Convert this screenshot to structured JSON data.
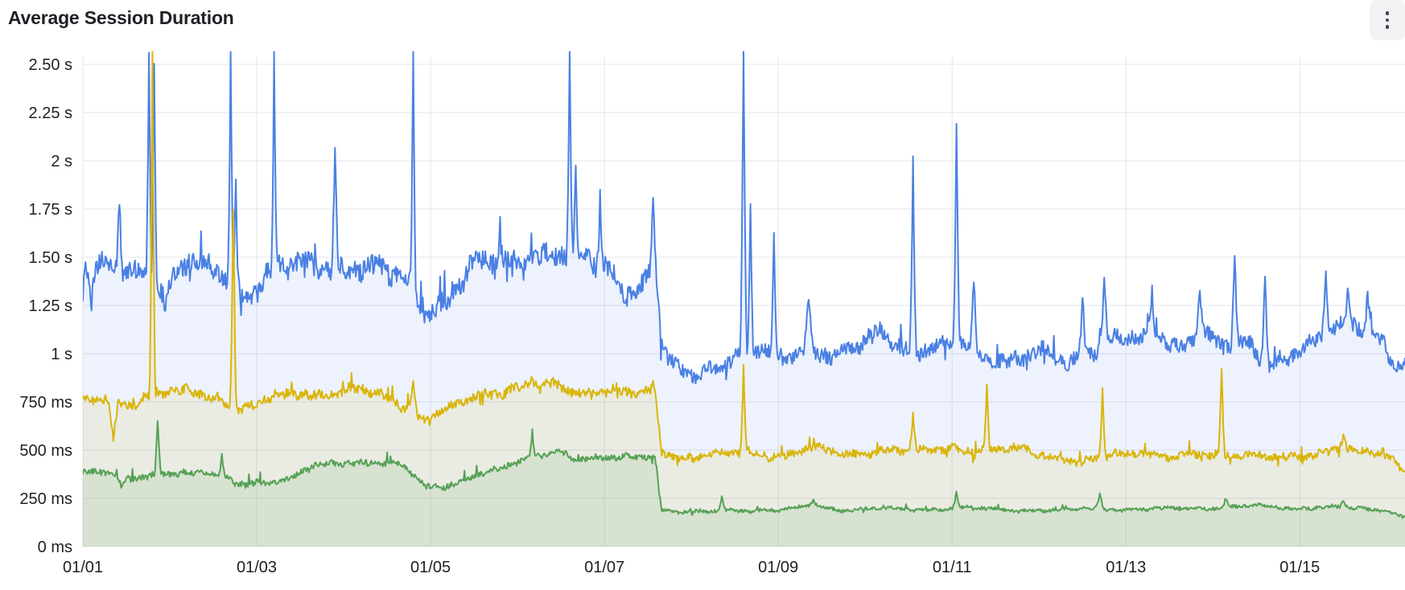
{
  "panel": {
    "title": "Average Session Duration",
    "background": "#ffffff",
    "title_color": "#1d2024",
    "menu_button_bg": "#f1f2f4",
    "menu_icon_color": "#3f434a",
    "menu_icon": "kebab-menu-icon"
  },
  "chart_data": {
    "type": "line",
    "title": "Average Session Duration",
    "legend": false,
    "grid": true,
    "grid_color": "#e5e6e8",
    "axis_text_color": "#1d2024",
    "x_axis": {
      "unit": "date (MM/DD)",
      "range_days": [
        1,
        16.21
      ],
      "tick_days": [
        1,
        3,
        5,
        7,
        9,
        11,
        13,
        15
      ],
      "tick_labels": [
        "01/01",
        "01/03",
        "01/05",
        "01/07",
        "01/09",
        "01/11",
        "01/13",
        "01/15"
      ]
    },
    "y_axis": {
      "unit": "duration",
      "range_ms": [
        0,
        2500
      ],
      "tick_ms": [
        0,
        250,
        500,
        750,
        1000,
        1250,
        1500,
        1750,
        2000,
        2250,
        2500
      ],
      "tick_labels": [
        "0 ms",
        "250 ms",
        "500 ms",
        "750 ms",
        "1 s",
        "1.25 s",
        "1.50 s",
        "1.75 s",
        "2 s",
        "2.25 s",
        "2.50 s"
      ]
    },
    "series": [
      {
        "name": "blue",
        "color": "#4a80e4",
        "fill_opacity": 0.1,
        "line_width": 2,
        "baseline": [
          [
            1.0,
            1440
          ],
          [
            1.6,
            1430
          ],
          [
            1.9,
            1340
          ],
          [
            2.2,
            1470
          ],
          [
            2.6,
            1400
          ],
          [
            2.9,
            1310
          ],
          [
            3.15,
            1430
          ],
          [
            3.5,
            1450
          ],
          [
            3.95,
            1460
          ],
          [
            4.4,
            1440
          ],
          [
            4.75,
            1350
          ],
          [
            5.0,
            1230
          ],
          [
            5.2,
            1280
          ],
          [
            5.5,
            1450
          ],
          [
            5.9,
            1490
          ],
          [
            6.3,
            1520
          ],
          [
            6.8,
            1480
          ],
          [
            7.1,
            1440
          ],
          [
            7.3,
            1320
          ],
          [
            7.45,
            1360
          ],
          [
            7.58,
            1480
          ],
          [
            7.66,
            1010
          ],
          [
            7.8,
            920
          ],
          [
            8.0,
            890
          ],
          [
            8.2,
            930
          ],
          [
            8.45,
            980
          ],
          [
            8.75,
            1010
          ],
          [
            9.05,
            970
          ],
          [
            9.3,
            1040
          ],
          [
            9.6,
            990
          ],
          [
            9.9,
            1020
          ],
          [
            10.15,
            1130
          ],
          [
            10.35,
            1060
          ],
          [
            10.65,
            1010
          ],
          [
            10.95,
            1040
          ],
          [
            11.15,
            1060
          ],
          [
            11.4,
            980
          ],
          [
            11.75,
            960
          ],
          [
            12.05,
            1000
          ],
          [
            12.35,
            960
          ],
          [
            12.6,
            1020
          ],
          [
            12.85,
            1080
          ],
          [
            13.1,
            1060
          ],
          [
            13.35,
            1110
          ],
          [
            13.6,
            1040
          ],
          [
            13.85,
            1110
          ],
          [
            14.1,
            1030
          ],
          [
            14.4,
            1060
          ],
          [
            14.65,
            960
          ],
          [
            14.9,
            990
          ],
          [
            15.15,
            1040
          ],
          [
            15.45,
            1150
          ],
          [
            15.7,
            1160
          ],
          [
            15.95,
            1060
          ],
          [
            16.1,
            920
          ],
          [
            16.21,
            940
          ]
        ],
        "noise_amp": [
          [
            1,
            55
          ],
          [
            7.6,
            55
          ],
          [
            7.72,
            40
          ],
          [
            16.21,
            40
          ]
        ],
        "spikes": [
          [
            1.1,
            1270,
            0.05
          ],
          [
            1.42,
            1800,
            0.04
          ],
          [
            1.76,
            2600,
            0.035
          ],
          [
            1.82,
            2600,
            0.035
          ],
          [
            1.95,
            1255,
            0.06
          ],
          [
            2.7,
            2600,
            0.035
          ],
          [
            2.76,
            1900,
            0.035
          ],
          [
            3.2,
            2600,
            0.035
          ],
          [
            3.9,
            2120,
            0.04
          ],
          [
            4.8,
            2600,
            0.035
          ],
          [
            5.8,
            1640,
            0.04
          ],
          [
            6.6,
            2600,
            0.035
          ],
          [
            6.67,
            1950,
            0.035
          ],
          [
            6.95,
            1800,
            0.04
          ],
          [
            7.56,
            1790,
            0.04
          ],
          [
            8.6,
            2600,
            0.04
          ],
          [
            8.68,
            1750,
            0.035
          ],
          [
            8.95,
            1590,
            0.04
          ],
          [
            9.35,
            1310,
            0.06
          ],
          [
            10.55,
            2010,
            0.04
          ],
          [
            11.05,
            2180,
            0.04
          ],
          [
            11.25,
            1390,
            0.05
          ],
          [
            12.5,
            1340,
            0.05
          ],
          [
            12.75,
            1410,
            0.05
          ],
          [
            13.3,
            1340,
            0.05
          ],
          [
            13.85,
            1360,
            0.05
          ],
          [
            14.25,
            1510,
            0.045
          ],
          [
            14.6,
            1450,
            0.045
          ],
          [
            15.3,
            1380,
            0.05
          ],
          [
            15.55,
            1340,
            0.05
          ],
          [
            15.78,
            1330,
            0.05
          ]
        ]
      },
      {
        "name": "yellow",
        "color": "#d9b50a",
        "fill_opacity": 0.1,
        "line_width": 2,
        "baseline": [
          [
            1.0,
            745
          ],
          [
            1.3,
            775
          ],
          [
            1.5,
            740
          ],
          [
            1.85,
            790
          ],
          [
            2.25,
            805
          ],
          [
            2.55,
            775
          ],
          [
            2.85,
            705
          ],
          [
            3.15,
            765
          ],
          [
            3.45,
            800
          ],
          [
            3.8,
            790
          ],
          [
            4.2,
            810
          ],
          [
            4.6,
            760
          ],
          [
            4.95,
            655
          ],
          [
            5.15,
            690
          ],
          [
            5.5,
            780
          ],
          [
            5.95,
            825
          ],
          [
            6.35,
            840
          ],
          [
            6.75,
            800
          ],
          [
            7.1,
            815
          ],
          [
            7.35,
            780
          ],
          [
            7.58,
            800
          ],
          [
            7.66,
            490
          ],
          [
            7.9,
            465
          ],
          [
            8.3,
            475
          ],
          [
            8.7,
            490
          ],
          [
            9.05,
            470
          ],
          [
            9.4,
            505
          ],
          [
            9.8,
            480
          ],
          [
            10.2,
            505
          ],
          [
            10.6,
            490
          ],
          [
            11.0,
            515
          ],
          [
            11.4,
            495
          ],
          [
            11.8,
            505
          ],
          [
            12.2,
            465
          ],
          [
            12.5,
            430
          ],
          [
            12.8,
            470
          ],
          [
            13.15,
            495
          ],
          [
            13.55,
            465
          ],
          [
            13.95,
            475
          ],
          [
            14.35,
            485
          ],
          [
            14.75,
            455
          ],
          [
            15.1,
            470
          ],
          [
            15.45,
            520
          ],
          [
            15.75,
            490
          ],
          [
            16.05,
            450
          ],
          [
            16.21,
            400
          ]
        ],
        "noise_amp": [
          [
            1,
            26
          ],
          [
            7.6,
            26
          ],
          [
            7.72,
            21
          ],
          [
            16.21,
            21
          ]
        ],
        "spikes": [
          [
            1.35,
            540,
            0.07
          ],
          [
            1.8,
            2600,
            0.035
          ],
          [
            2.73,
            1760,
            0.04
          ],
          [
            4.8,
            865,
            0.05
          ],
          [
            6.17,
            885,
            0.045
          ],
          [
            7.56,
            830,
            0.05
          ],
          [
            8.6,
            950,
            0.04
          ],
          [
            10.55,
            665,
            0.05
          ],
          [
            11.4,
            825,
            0.04
          ],
          [
            12.73,
            805,
            0.04
          ],
          [
            14.1,
            935,
            0.04
          ],
          [
            15.5,
            605,
            0.05
          ]
        ]
      },
      {
        "name": "green",
        "color": "#55a155",
        "fill_opacity": 0.12,
        "line_width": 2,
        "baseline": [
          [
            1.0,
            390
          ],
          [
            1.3,
            395
          ],
          [
            1.55,
            345
          ],
          [
            1.8,
            365
          ],
          [
            2.15,
            390
          ],
          [
            2.5,
            380
          ],
          [
            2.75,
            320
          ],
          [
            3.05,
            330
          ],
          [
            3.35,
            355
          ],
          [
            3.65,
            415
          ],
          [
            4.05,
            430
          ],
          [
            4.35,
            445
          ],
          [
            4.65,
            430
          ],
          [
            4.95,
            305
          ],
          [
            5.2,
            315
          ],
          [
            5.5,
            375
          ],
          [
            5.85,
            405
          ],
          [
            6.15,
            455
          ],
          [
            6.45,
            505
          ],
          [
            6.7,
            450
          ],
          [
            7.0,
            455
          ],
          [
            7.3,
            465
          ],
          [
            7.58,
            478
          ],
          [
            7.66,
            190
          ],
          [
            7.95,
            175
          ],
          [
            8.5,
            190
          ],
          [
            9.0,
            185
          ],
          [
            9.4,
            215
          ],
          [
            9.7,
            190
          ],
          [
            10.2,
            196
          ],
          [
            10.7,
            192
          ],
          [
            11.2,
            200
          ],
          [
            11.7,
            190
          ],
          [
            12.2,
            186
          ],
          [
            12.6,
            200
          ],
          [
            13.0,
            190
          ],
          [
            13.5,
            196
          ],
          [
            14.0,
            200
          ],
          [
            14.5,
            212
          ],
          [
            14.9,
            200
          ],
          [
            15.3,
            206
          ],
          [
            15.7,
            196
          ],
          [
            16.0,
            188
          ],
          [
            16.1,
            170
          ],
          [
            16.21,
            150
          ]
        ],
        "noise_amp": [
          [
            1,
            16
          ],
          [
            7.6,
            16
          ],
          [
            7.72,
            9
          ],
          [
            16.21,
            9
          ]
        ],
        "spikes": [
          [
            1.45,
            300,
            0.08
          ],
          [
            1.86,
            655,
            0.04
          ],
          [
            2.6,
            465,
            0.05
          ],
          [
            6.17,
            595,
            0.04
          ],
          [
            8.35,
            262,
            0.05
          ],
          [
            9.4,
            242,
            0.07
          ],
          [
            11.05,
            283,
            0.05
          ],
          [
            12.7,
            282,
            0.05
          ],
          [
            14.15,
            252,
            0.06
          ],
          [
            15.5,
            237,
            0.05
          ]
        ]
      }
    ]
  }
}
